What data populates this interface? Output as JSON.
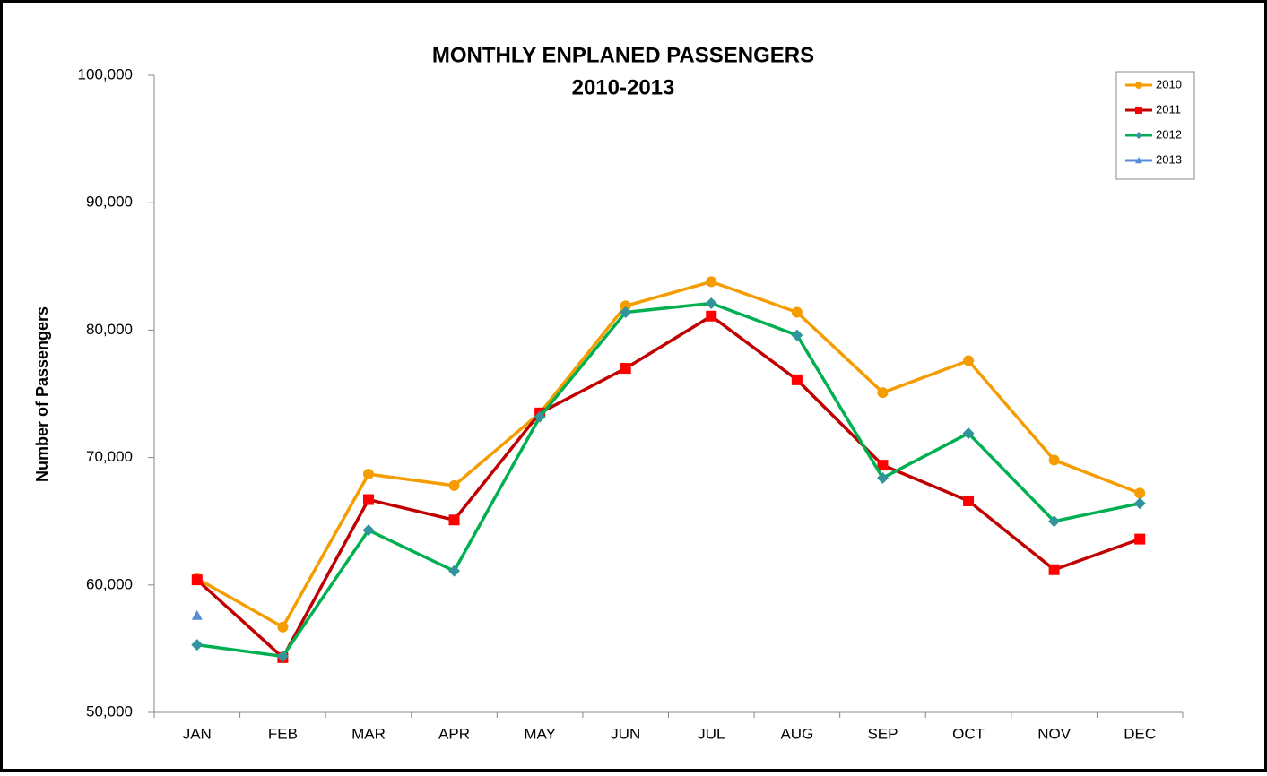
{
  "chart_data": {
    "type": "line",
    "title": "MONTHLY ENPLANED PASSENGERS",
    "subtitle": "2010-2013",
    "y_label": "Number of Passengers",
    "categories": [
      "JAN",
      "FEB",
      "MAR",
      "APR",
      "MAY",
      "JUN",
      "JUL",
      "AUG",
      "SEP",
      "OCT",
      "NOV",
      "DEC"
    ],
    "series": [
      {
        "name": "2010",
        "color": "#f59d00",
        "marker_color": "#f59d00",
        "marker": "circle",
        "values": [
          60500,
          56700,
          68700,
          67800,
          73500,
          81900,
          83800,
          81400,
          75100,
          77600,
          69800,
          67200
        ]
      },
      {
        "name": "2011",
        "color": "#c00000",
        "marker_color": "#ff0000",
        "marker": "square",
        "values": [
          60400,
          54300,
          66700,
          65100,
          73500,
          77000,
          81100,
          76100,
          69400,
          66600,
          61200,
          63600
        ]
      },
      {
        "name": "2012",
        "color": "#00b050",
        "marker_color": "#31949c",
        "marker": "diamond",
        "values": [
          55300,
          54400,
          64300,
          61100,
          73200,
          81400,
          82100,
          79600,
          68400,
          71900,
          65000,
          66400
        ]
      },
      {
        "name": "2013",
        "color": "#558ed5",
        "marker_color": "#558ed5",
        "marker": "triangle",
        "values": [
          57600,
          null,
          null,
          null,
          null,
          null,
          null,
          null,
          null,
          null,
          null,
          null
        ]
      }
    ],
    "ylim": [
      50000,
      100000
    ],
    "yticks": [
      {
        "value": 50000,
        "label": "50,000"
      },
      {
        "value": 60000,
        "label": "60,000"
      },
      {
        "value": 70000,
        "label": "70,000"
      },
      {
        "value": 80000,
        "label": "80,000"
      },
      {
        "value": 90000,
        "label": "90,000"
      },
      {
        "value": 100000,
        "label": "100,000"
      }
    ],
    "grid": false,
    "legend": "top-right"
  }
}
